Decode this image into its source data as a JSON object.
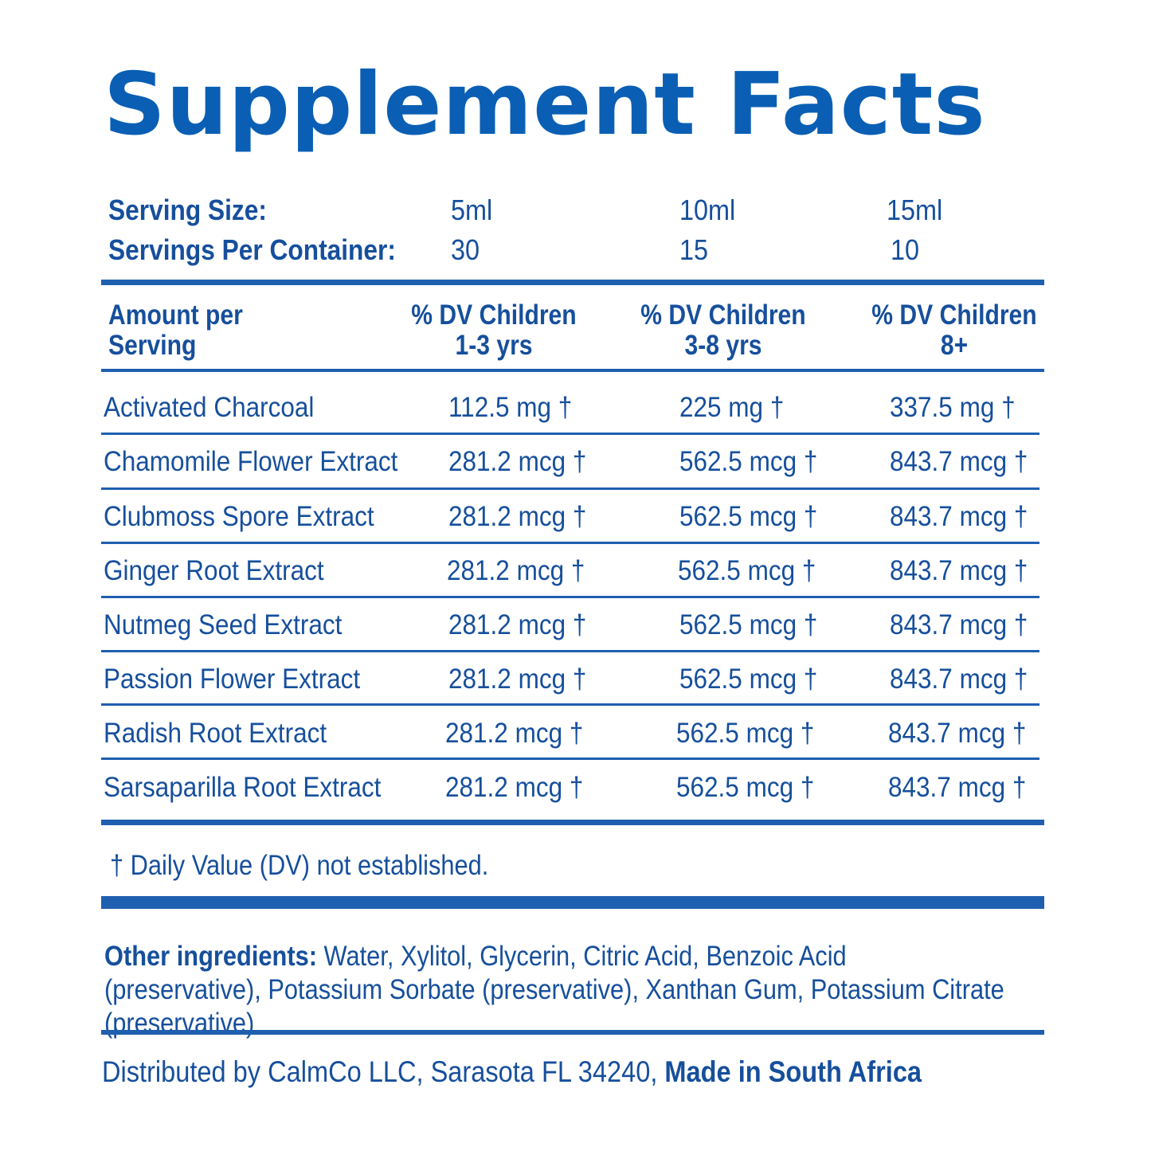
{
  "colors": {
    "accent": "#0a5fb4",
    "text": "#164f9c",
    "rule": "#1f5fb0"
  },
  "title": "Supplement Facts",
  "serving": {
    "size_label": "Serving Size:",
    "size_values": [
      "5ml",
      "10ml",
      "15ml"
    ],
    "per_container_label": "Servings Per Container:",
    "per_container_values": [
      "30",
      "15",
      "10"
    ]
  },
  "header": {
    "amount_line1": "Amount per",
    "amount_line2": "Serving",
    "col1_line1": "% DV  Children",
    "col1_line2": "1-3 yrs",
    "col2_line1": "% DV  Children",
    "col2_line2": "3-8 yrs",
    "col3_line1": "% DV Children",
    "col3_line2": "8+"
  },
  "rows": [
    {
      "name": "Activated Charcoal",
      "v1": "112.5 mg †",
      "v2": "225 mg †",
      "v3": "337.5 mg †"
    },
    {
      "name": "Chamomile Flower Extract",
      "v1": "281.2 mcg †",
      "v2": "562.5 mcg †",
      "v3": "843.7 mcg †"
    },
    {
      "name": "Clubmoss Spore Extract",
      "v1": "281.2 mcg †",
      "v2": "562.5 mcg †",
      "v3": "843.7 mcg †"
    },
    {
      "name": "Ginger Root Extract",
      "v1": "281.2 mcg †",
      "v2": "562.5 mcg †",
      "v3": "843.7 mcg †"
    },
    {
      "name": "Nutmeg Seed Extract",
      "v1": "281.2 mcg †",
      "v2": "562.5 mcg †",
      "v3": "843.7 mcg †"
    },
    {
      "name": "Passion Flower Extract",
      "v1": "281.2 mcg †",
      "v2": "562.5 mcg †",
      "v3": "843.7 mcg †"
    },
    {
      "name": "Radish Root Extract",
      "v1": "281.2 mcg †",
      "v2": "562.5 mcg †",
      "v3": "843.7 mcg †"
    },
    {
      "name": "Sarsaparilla Root Extract",
      "v1": "281.2 mcg †",
      "v2": "562.5 mcg †",
      "v3": "843.7 mcg †"
    }
  ],
  "dv_note": "† Daily Value (DV) not established.",
  "other": {
    "label": "Other ingredients:",
    "text": " Water, Xylitol, Glycerin, Citric Acid, Benzoic Acid (preservative), Potassium Sorbate (preservative), Xanthan Gum, Potassium Citrate (preservative)"
  },
  "footer": {
    "distributed": "Distributed by CalmCo LLC, Sarasota FL 34240, ",
    "made_in": "Made in South Africa"
  }
}
